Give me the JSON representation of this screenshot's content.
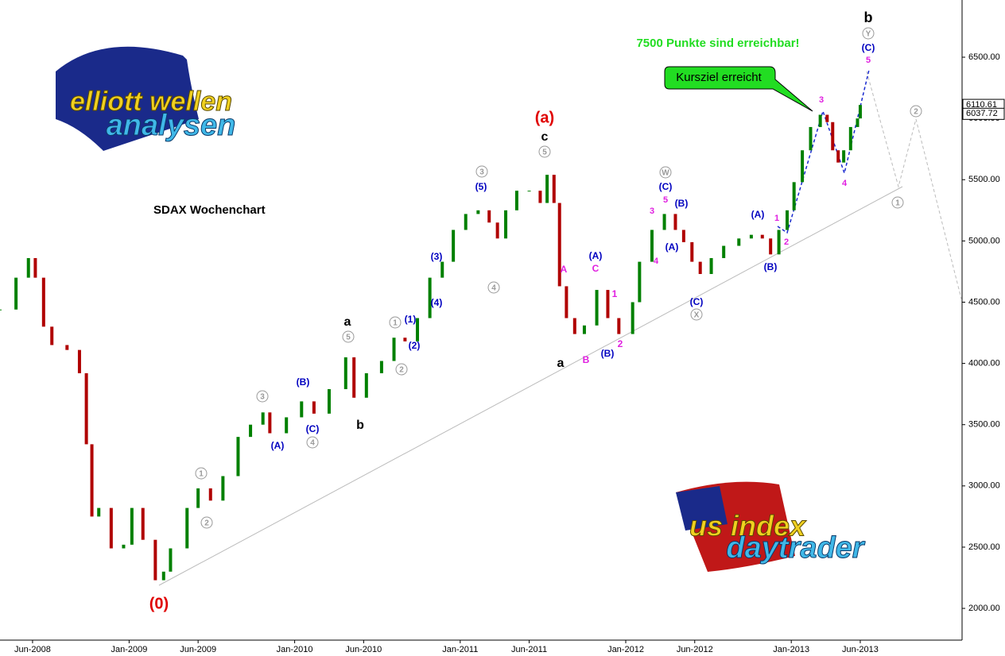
{
  "chart_data": {
    "type": "candlestick",
    "title": "SDAX Wochenchart",
    "subtitle": "7500 Punkte sind erreichbar!",
    "callout": "Kursziel erreicht",
    "up_color": "#008000",
    "down_color": "#b00000",
    "x": [
      2.64,
      3.8,
      4.7,
      5.2,
      5.8,
      6.4,
      7.5,
      8.4,
      8.9,
      9.3,
      9.8,
      10.7,
      11.6,
      12.2,
      13.0,
      13.9,
      14.5,
      15.0,
      16.2,
      17.0,
      17.9,
      18.8,
      19.9,
      20.8,
      21.7,
      22.2,
      23.4,
      24.5,
      25.4,
      26.5,
      27.7,
      28.3,
      29.2,
      30.3,
      31.2,
      32.0,
      32.9,
      33.8,
      34.7,
      35.5,
      36.4,
      37.3,
      38.1,
      38.7,
      39.3,
      40.1,
      41.0,
      41.8,
      42.3,
      42.8,
      43.2,
      43.7,
      44.3,
      45.0,
      45.9,
      46.7,
      47.5,
      48.5,
      49.0,
      49.9,
      50.8,
      51.6,
      52.2,
      52.8,
      53.4,
      54.2,
      55.1,
      56.2,
      57.1,
      57.9,
      58.5,
      59.1,
      59.7,
      60.2,
      60.8,
      61.4,
      62.1,
      62.6,
      63.0,
      63.4,
      63.8,
      64.3,
      64.8,
      65.0
    ],
    "values": [
      4440,
      4700,
      4860,
      4700,
      4300,
      4150,
      4110,
      3920,
      3340,
      2750,
      2820,
      2490,
      2520,
      2820,
      2560,
      2230,
      2300,
      2490,
      2820,
      2980,
      2880,
      3080,
      3400,
      3500,
      3600,
      3430,
      3560,
      3690,
      3590,
      3790,
      4050,
      3720,
      3920,
      4020,
      4210,
      4180,
      4370,
      4700,
      4830,
      5090,
      5220,
      5250,
      5150,
      5020,
      5250,
      5410,
      5410,
      5310,
      5540,
      5310,
      4630,
      4370,
      4240,
      4310,
      4600,
      4370,
      4240,
      4500,
      4830,
      5090,
      5220,
      5090,
      4990,
      4830,
      4730,
      4860,
      4960,
      5020,
      5050,
      5020,
      4890,
      5090,
      5250,
      5480,
      5740,
      5930,
      6030,
      5970,
      5740,
      5640,
      5740,
      5930,
      6000,
      6110
    ],
    "xlim": [
      2.64,
      72.38
    ],
    "ylim": [
      1741,
      6967
    ],
    "xticks": [
      {
        "value": 5,
        "label": "Jun-2008"
      },
      {
        "value": 12,
        "label": "Jan-2009"
      },
      {
        "value": 17,
        "label": "Jun-2009"
      },
      {
        "value": 24,
        "label": "Jan-2010"
      },
      {
        "value": 29,
        "label": "Jun-2010"
      },
      {
        "value": 36,
        "label": "Jan-2011"
      },
      {
        "value": 41,
        "label": "Jun-2011"
      },
      {
        "value": 48,
        "label": "Jan-2012"
      },
      {
        "value": 53,
        "label": "Jun-2012"
      },
      {
        "value": 60,
        "label": "Jan-2013"
      },
      {
        "value": 65,
        "label": "Jun-2013"
      }
    ],
    "yticks": [
      {
        "value": 2000,
        "label": "2000.00"
      },
      {
        "value": 2500,
        "label": "2500.00"
      },
      {
        "value": 3000,
        "label": "3000.00"
      },
      {
        "value": 3500,
        "label": "3500.00"
      },
      {
        "value": 4000,
        "label": "4000.00"
      },
      {
        "value": 4500,
        "label": "4500.00"
      },
      {
        "value": 5000,
        "label": "5000.00"
      },
      {
        "value": 5500,
        "label": "5500.00"
      },
      {
        "value": 6000,
        "label": "6000.00"
      },
      {
        "value": 6500,
        "label": "6500.00"
      }
    ],
    "last_values": [
      {
        "value": 6110.61,
        "label": "6110.61"
      },
      {
        "value": 6037.72,
        "label": "6037.72"
      }
    ],
    "annotations": [
      "(0)",
      "(a)",
      "c",
      "5",
      "3",
      "(5)",
      "4",
      "(3)",
      "(4)",
      "(1)",
      "1",
      "(2)",
      "2",
      "a",
      "5",
      "b",
      "3",
      "(B)",
      "(C)",
      "4",
      "(A)",
      "1",
      "2",
      "A",
      "(A)",
      "C",
      "1",
      "a",
      "B",
      "(B)",
      "2",
      "W",
      "(C)",
      "5",
      "3",
      "(B)",
      "(A)",
      "4",
      "(C)",
      "X",
      "(A)",
      "1",
      "2",
      "(B)",
      "3",
      "4",
      "5",
      "(C)",
      "Y",
      "b",
      "1",
      "2"
    ],
    "logos": [
      "elliott wellen",
      "analysen",
      "us index",
      "daytrader"
    ]
  }
}
